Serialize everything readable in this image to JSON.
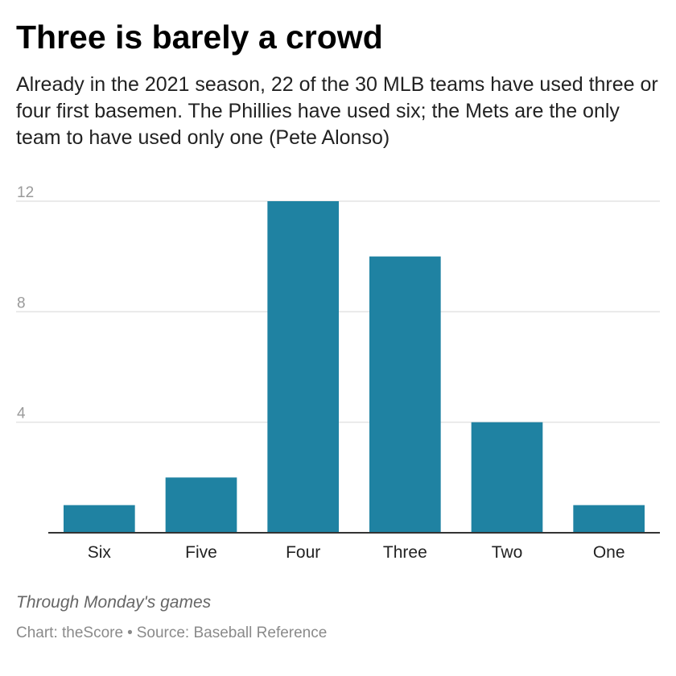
{
  "header": {
    "title": "Three is barely a crowd",
    "subtitle": "Already in the 2021 season, 22 of the 30 MLB teams have used three or four first basemen. The Phillies have used six; the Mets are the only team to have used only one (Pete Alonso)"
  },
  "footer": {
    "note": "Through Monday's games",
    "chart_credit": "Chart: theScore",
    "separator": "•",
    "source": "Source: Baseball Reference"
  },
  "colors": {
    "bar": "#1f82a2",
    "gridline": "#e3e3e3",
    "baseline": "#333333",
    "y_tick_text": "#9a9a9a",
    "x_tick_text": "#222222"
  },
  "chart_data": {
    "type": "bar",
    "categories": [
      "Six",
      "Five",
      "Four",
      "Three",
      "Two",
      "One"
    ],
    "values": [
      1,
      2,
      12,
      10,
      4,
      1
    ],
    "title": "Three is barely a crowd",
    "xlabel": "",
    "ylabel": "",
    "ylim": [
      0,
      12
    ],
    "yticks": [
      4,
      8,
      12
    ],
    "grid": true,
    "legend": "none"
  }
}
